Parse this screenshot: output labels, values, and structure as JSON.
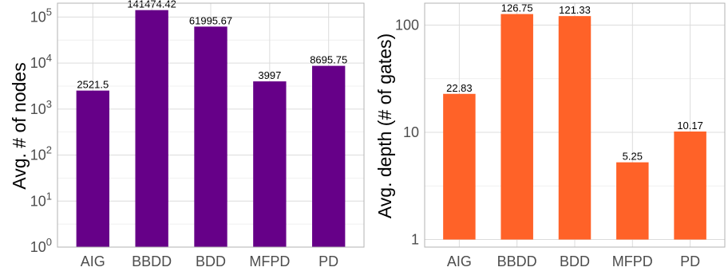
{
  "chart_data": [
    {
      "type": "bar",
      "categories": [
        "AIG",
        "BBDD",
        "BDD",
        "MFPD",
        "PD"
      ],
      "values": [
        2521.5,
        141474.42,
        61995.67,
        3997,
        8695.75
      ],
      "value_labels": [
        "2521.5",
        "141474.42",
        "61995.67",
        "3997",
        "8695.75"
      ],
      "ylabel": "Avg. # of nodes",
      "yscale": "log10",
      "ylim": [
        1,
        200000
      ],
      "yticks": [
        1,
        10,
        100,
        1000,
        10000,
        100000
      ],
      "ytick_base": "10",
      "ytick_exponents": [
        "0",
        "1",
        "2",
        "3",
        "4",
        "5"
      ],
      "bar_color": "#660088",
      "grid": true
    },
    {
      "type": "bar",
      "categories": [
        "AIG",
        "BBDD",
        "BDD",
        "MFPD",
        "PD"
      ],
      "values": [
        22.83,
        126.75,
        121.33,
        5.25,
        10.17
      ],
      "value_labels": [
        "22.83",
        "126.75",
        "121.33",
        "5.25",
        "10.17"
      ],
      "ylabel": "Avg. depth (# of gates)",
      "yscale": "log10",
      "ylim": [
        0.85,
        160
      ],
      "yticks": [
        1,
        10,
        100
      ],
      "ytick_labels": [
        "1",
        "10",
        "100"
      ],
      "bar_color": "#ff6228",
      "grid": true
    }
  ]
}
